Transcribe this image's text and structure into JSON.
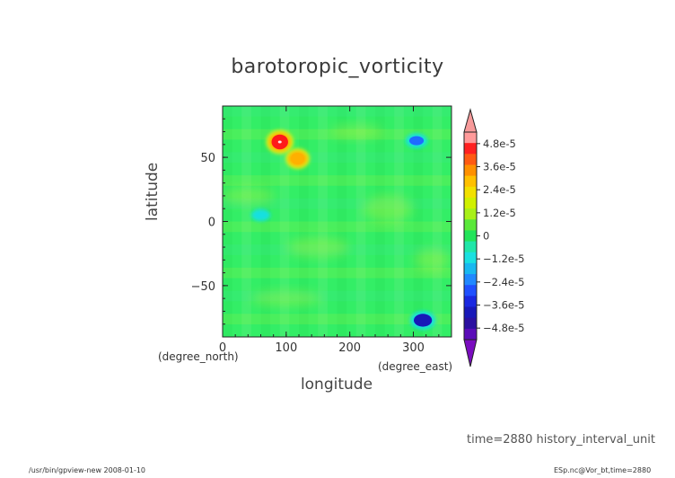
{
  "chart_data": {
    "type": "heatmap",
    "title": "barotoropic_vorticity",
    "xlabel": "longitude",
    "ylabel": "latitude",
    "x_unit": "(degree_north)",
    "y_unit": "(degree_east)",
    "xlim": [
      0,
      360
    ],
    "ylim": [
      -90,
      90
    ],
    "x_ticks": [
      0,
      100,
      200,
      300
    ],
    "x_tick_labels": [
      "0",
      "100",
      "200",
      "300"
    ],
    "y_ticks": [
      50,
      0,
      -50
    ],
    "y_tick_labels": [
      "50",
      "0",
      "−50"
    ],
    "colorbar": {
      "labels": [
        "4.8e-5",
        "3.6e-5",
        "2.4e-5",
        "1.2e-5",
        "0",
        "−1.2e-5",
        "−2.4e-5",
        "−3.6e-5",
        "−4.8e-5"
      ],
      "values": [
        4.8e-05,
        3.6e-05,
        2.4e-05,
        1.2e-05,
        0,
        -1.2e-05,
        -2.4e-05,
        -3.6e-05,
        -4.8e-05
      ],
      "range": [
        -5.4e-05,
        5.4e-05
      ]
    },
    "features": [
      {
        "lon": 90,
        "lat": 62,
        "value": 4.2e-05
      },
      {
        "lon": 118,
        "lat": 49,
        "value": 3e-05
      },
      {
        "lon": 305,
        "lat": 63,
        "value": -1.4e-05
      },
      {
        "lon": 315,
        "lat": -77,
        "value": -2.8e-05
      },
      {
        "lon": 60,
        "lat": 5,
        "value": -4e-06
      }
    ],
    "colors": {
      "background": "#33ee66",
      "pos_high": "#ff1a1a",
      "pos_mid": "#ffb000",
      "pos_low": "#d8f21a",
      "neg_low": "#19e0e0",
      "neg_mid": "#1f6bff",
      "neg_high": "#1818b8",
      "over": "#f79a9a",
      "under": "#7a0cbf"
    }
  },
  "annotations": {
    "timestamp": "time=2880  history_interval_unit",
    "footer_left": "/usr/bin/gpview-new  2008-01-10",
    "footer_right": "ESp.nc@Vor_bt,time=2880"
  }
}
